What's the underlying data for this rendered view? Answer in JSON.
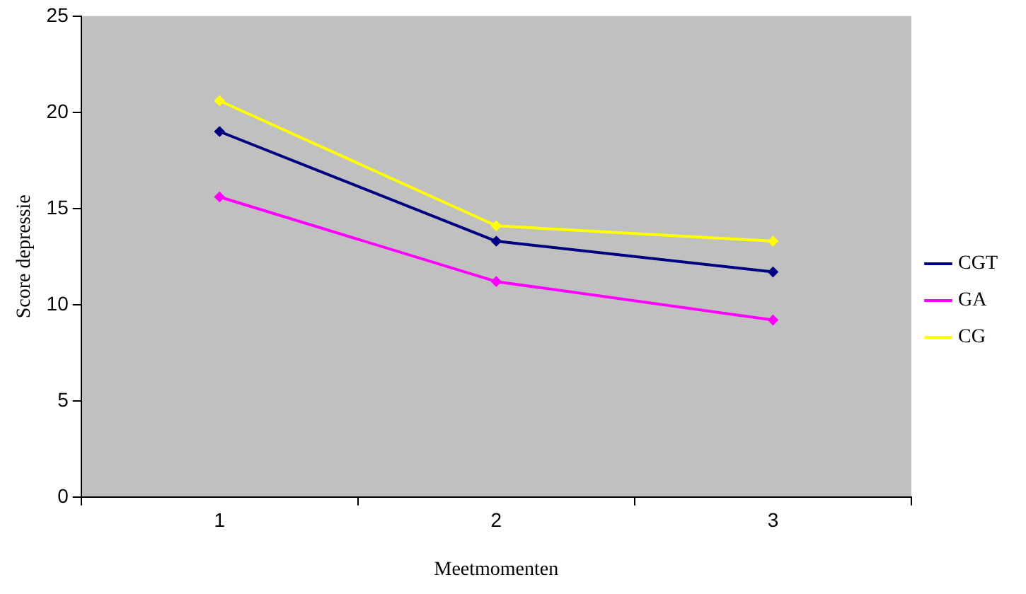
{
  "chart_data": {
    "type": "line",
    "xlabel": "Meetmomenten",
    "ylabel": "Score depressie",
    "categories": [
      "1",
      "2",
      "3"
    ],
    "series": [
      {
        "name": "CGT",
        "color": "#000080",
        "values": [
          19,
          13.3,
          11.7
        ]
      },
      {
        "name": "GA",
        "color": "#ff00ff",
        "values": [
          15.6,
          11.2,
          9.2
        ]
      },
      {
        "name": "CG",
        "color": "#ffff00",
        "values": [
          20.6,
          14.1,
          13.3
        ]
      }
    ],
    "ylim": [
      0,
      25
    ],
    "yticks": [
      0,
      5,
      10,
      15,
      20,
      25
    ],
    "grid": false,
    "legend": "right",
    "marker": "diamond",
    "line_style": "solid"
  }
}
